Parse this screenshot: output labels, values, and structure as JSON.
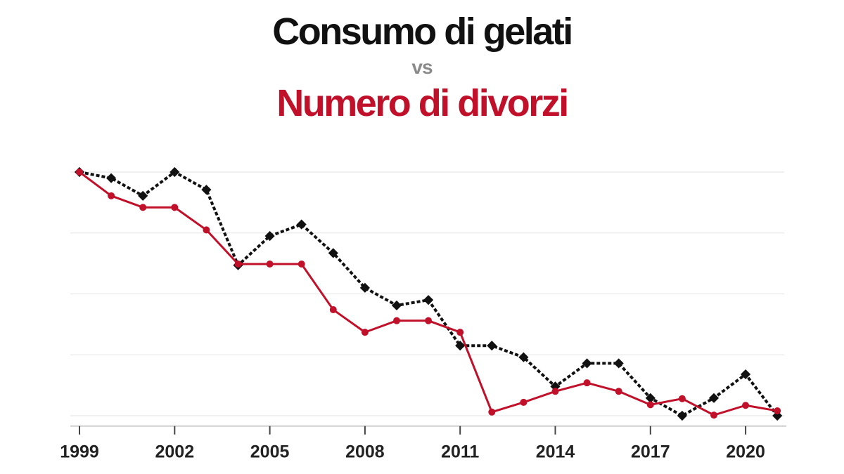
{
  "chart_data": {
    "type": "line",
    "title": "Consumo di gelati",
    "subtitle_connector": "vs",
    "title_second": "Numero di divorzi",
    "x": [
      1999,
      2000,
      2001,
      2002,
      2003,
      2004,
      2005,
      2006,
      2007,
      2008,
      2009,
      2010,
      2011,
      2012,
      2013,
      2014,
      2015,
      2016,
      2017,
      2018,
      2019,
      2020,
      2021
    ],
    "x_tick_labels": [
      "1999",
      "2002",
      "2005",
      "2008",
      "2011",
      "2014",
      "2017",
      "2020"
    ],
    "ylim": [
      -0.17,
      4.2
    ],
    "y_axis_labels_shown": false,
    "grid": "horizontal",
    "series": [
      {
        "key": "gelati",
        "color": "#111111",
        "style": "dotted",
        "marker": "diamond",
        "values": [
          4.0,
          3.9,
          3.61,
          4.0,
          3.71,
          2.47,
          2.95,
          3.14,
          2.67,
          2.1,
          1.81,
          1.9,
          1.15,
          1.15,
          0.96,
          0.48,
          0.86,
          0.86,
          0.29,
          0.0,
          0.29,
          0.68,
          0.0
        ]
      },
      {
        "key": "divorzi",
        "color": "#c0102a",
        "style": "solid",
        "marker": "circle",
        "values": [
          4.0,
          3.61,
          3.42,
          3.42,
          3.05,
          2.49,
          2.49,
          2.49,
          1.74,
          1.37,
          1.56,
          1.56,
          1.37,
          0.06,
          0.22,
          0.4,
          0.54,
          0.4,
          0.18,
          0.28,
          0.01,
          0.17,
          0.08
        ]
      }
    ]
  }
}
